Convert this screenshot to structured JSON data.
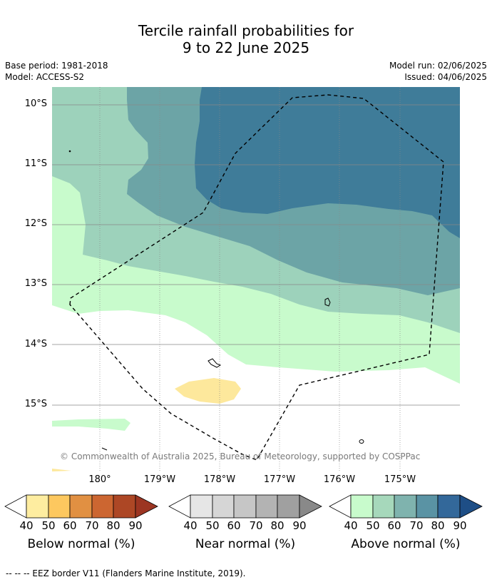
{
  "title": {
    "line1": "Tercile rainfall probabilities for",
    "line2": "9 to 22 June 2025"
  },
  "meta": {
    "base_period": "Base period: 1981-2018",
    "model": "Model: ACCESS-S2",
    "model_run": "Model run: 02/06/2025",
    "issued": "Issued: 04/06/2025"
  },
  "map": {
    "lat_labels": [
      "10°S",
      "11°S",
      "12°S",
      "13°S",
      "14°S",
      "15°S"
    ],
    "lon_labels": [
      "180°",
      "179°W",
      "178°W",
      "177°W",
      "176°W",
      "175°W"
    ],
    "copyright": "© Commonwealth of Australia 2025, Bureau of Meteorology, supported by COSPPac",
    "colors": {
      "above_40_50": "#c8fbcc",
      "above_50_60": "#9dd2bb",
      "above_60_70": "#6ca4a6",
      "above_70_80": "#3f7c99",
      "below_40_50": "#fde89c",
      "land_outline": "#000000",
      "eez_border": "#000000"
    }
  },
  "colorbars": [
    {
      "title": "Below normal (%)",
      "ticks": [
        "40",
        "50",
        "60",
        "70",
        "80",
        "90"
      ],
      "colors": [
        "#feeda0",
        "#fdc85f",
        "#e19042",
        "#cc6631",
        "#ad4725",
        "#9c3522"
      ]
    },
    {
      "title": "Near normal (%)",
      "ticks": [
        "40",
        "50",
        "60",
        "70",
        "80",
        "90"
      ],
      "colors": [
        "#e6e6e6",
        "#d6d6d6",
        "#c6c6c6",
        "#b3b3b3",
        "#a0a0a0",
        "#898989"
      ]
    },
    {
      "title": "Above normal (%)",
      "ticks": [
        "40",
        "50",
        "60",
        "70",
        "80",
        "90"
      ],
      "colors": [
        "#c8fbcc",
        "#a6d8bb",
        "#7fb3ae",
        "#5a93a4",
        "#33689a",
        "#1e4e86"
      ]
    }
  ],
  "footer": "--  --  -- EEZ border V11 (Flanders Marine Institute, 2019)."
}
